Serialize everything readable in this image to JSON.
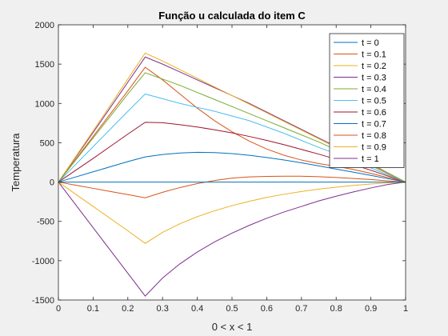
{
  "chart_data": {
    "type": "line",
    "title": "Função u calculada do item C",
    "xlabel": "0 < x < 1",
    "ylabel": "Temperatura",
    "xlim": [
      0,
      1
    ],
    "ylim": [
      -1500,
      2000
    ],
    "xticks": [
      "0",
      "0.1",
      "0.2",
      "0.3",
      "0.4",
      "0.5",
      "0.6",
      "0.7",
      "0.8",
      "0.9",
      "1"
    ],
    "yticks": [
      "-1500",
      "-1000",
      "-500",
      "0",
      "500",
      "1000",
      "1500",
      "2000"
    ],
    "grid": false,
    "legend_position": "top-right",
    "x": [
      0,
      0.05,
      0.1,
      0.15,
      0.2,
      0.25,
      0.3,
      0.35,
      0.4,
      0.45,
      0.5,
      0.55,
      0.6,
      0.65,
      0.7,
      0.75,
      0.8,
      0.85,
      0.9,
      0.95,
      1
    ],
    "series": [
      {
        "name": "t = 0",
        "color": "#0072bd",
        "values": [
          0,
          0,
          0,
          0,
          0,
          0,
          0,
          0,
          0,
          0,
          0,
          0,
          0,
          0,
          0,
          0,
          0,
          0,
          0,
          0,
          0
        ]
      },
      {
        "name": "t = 0.1",
        "color": "#d95319",
        "values": [
          0,
          -40,
          -80,
          -120,
          -160,
          -200,
          -130,
          -70,
          -20,
          20,
          50,
          65,
          72,
          75,
          74,
          68,
          58,
          45,
          32,
          15,
          0
        ]
      },
      {
        "name": "t = 0.2",
        "color": "#edb120",
        "values": [
          0,
          -155,
          -310,
          -465,
          -620,
          -780,
          -640,
          -530,
          -440,
          -365,
          -300,
          -245,
          -195,
          -155,
          -120,
          -90,
          -65,
          -42,
          -25,
          -10,
          0
        ]
      },
      {
        "name": "t = 0.3",
        "color": "#7e2f8e",
        "values": [
          0,
          -290,
          -580,
          -870,
          -1160,
          -1450,
          -1220,
          -1040,
          -890,
          -760,
          -650,
          -550,
          -460,
          -380,
          -310,
          -240,
          -180,
          -125,
          -75,
          -30,
          0
        ]
      },
      {
        "name": "t = 0.4",
        "color": "#77ac30",
        "values": [
          0,
          280,
          560,
          840,
          1120,
          1390,
          1310,
          1230,
          1140,
          1050,
          960,
          870,
          780,
          690,
          600,
          510,
          410,
          310,
          210,
          105,
          0
        ]
      },
      {
        "name": "t = 0.5",
        "color": "#4dbeee",
        "values": [
          0,
          225,
          450,
          675,
          900,
          1120,
          1060,
          1000,
          950,
          900,
          840,
          780,
          700,
          620,
          530,
          440,
          360,
          270,
          180,
          90,
          0
        ]
      },
      {
        "name": "t = 0.6",
        "color": "#a2142f",
        "values": [
          0,
          150,
          300,
          455,
          610,
          760,
          755,
          730,
          700,
          665,
          625,
          580,
          530,
          475,
          415,
          355,
          290,
          220,
          150,
          75,
          0
        ]
      },
      {
        "name": "t = 0.7",
        "color": "#0072bd",
        "values": [
          0,
          65,
          130,
          195,
          260,
          320,
          350,
          370,
          378,
          375,
          362,
          340,
          312,
          280,
          245,
          205,
          165,
          125,
          85,
          42,
          0
        ]
      },
      {
        "name": "t = 0.8",
        "color": "#d95319",
        "values": [
          0,
          290,
          580,
          870,
          1160,
          1460,
          1300,
          1120,
          940,
          780,
          640,
          520,
          420,
          340,
          280,
          235,
          200,
          160,
          110,
          55,
          0
        ]
      },
      {
        "name": "t = 0.9",
        "color": "#edb120",
        "values": [
          0,
          325,
          650,
          980,
          1310,
          1640,
          1540,
          1430,
          1320,
          1210,
          1100,
          990,
          880,
          770,
          660,
          550,
          440,
          330,
          220,
          110,
          0
        ]
      },
      {
        "name": "t = 1",
        "color": "#7e2f8e",
        "values": [
          0,
          315,
          630,
          950,
          1270,
          1590,
          1500,
          1400,
          1300,
          1200,
          1100,
          1000,
          890,
          780,
          670,
          560,
          450,
          340,
          230,
          115,
          0
        ]
      }
    ]
  }
}
